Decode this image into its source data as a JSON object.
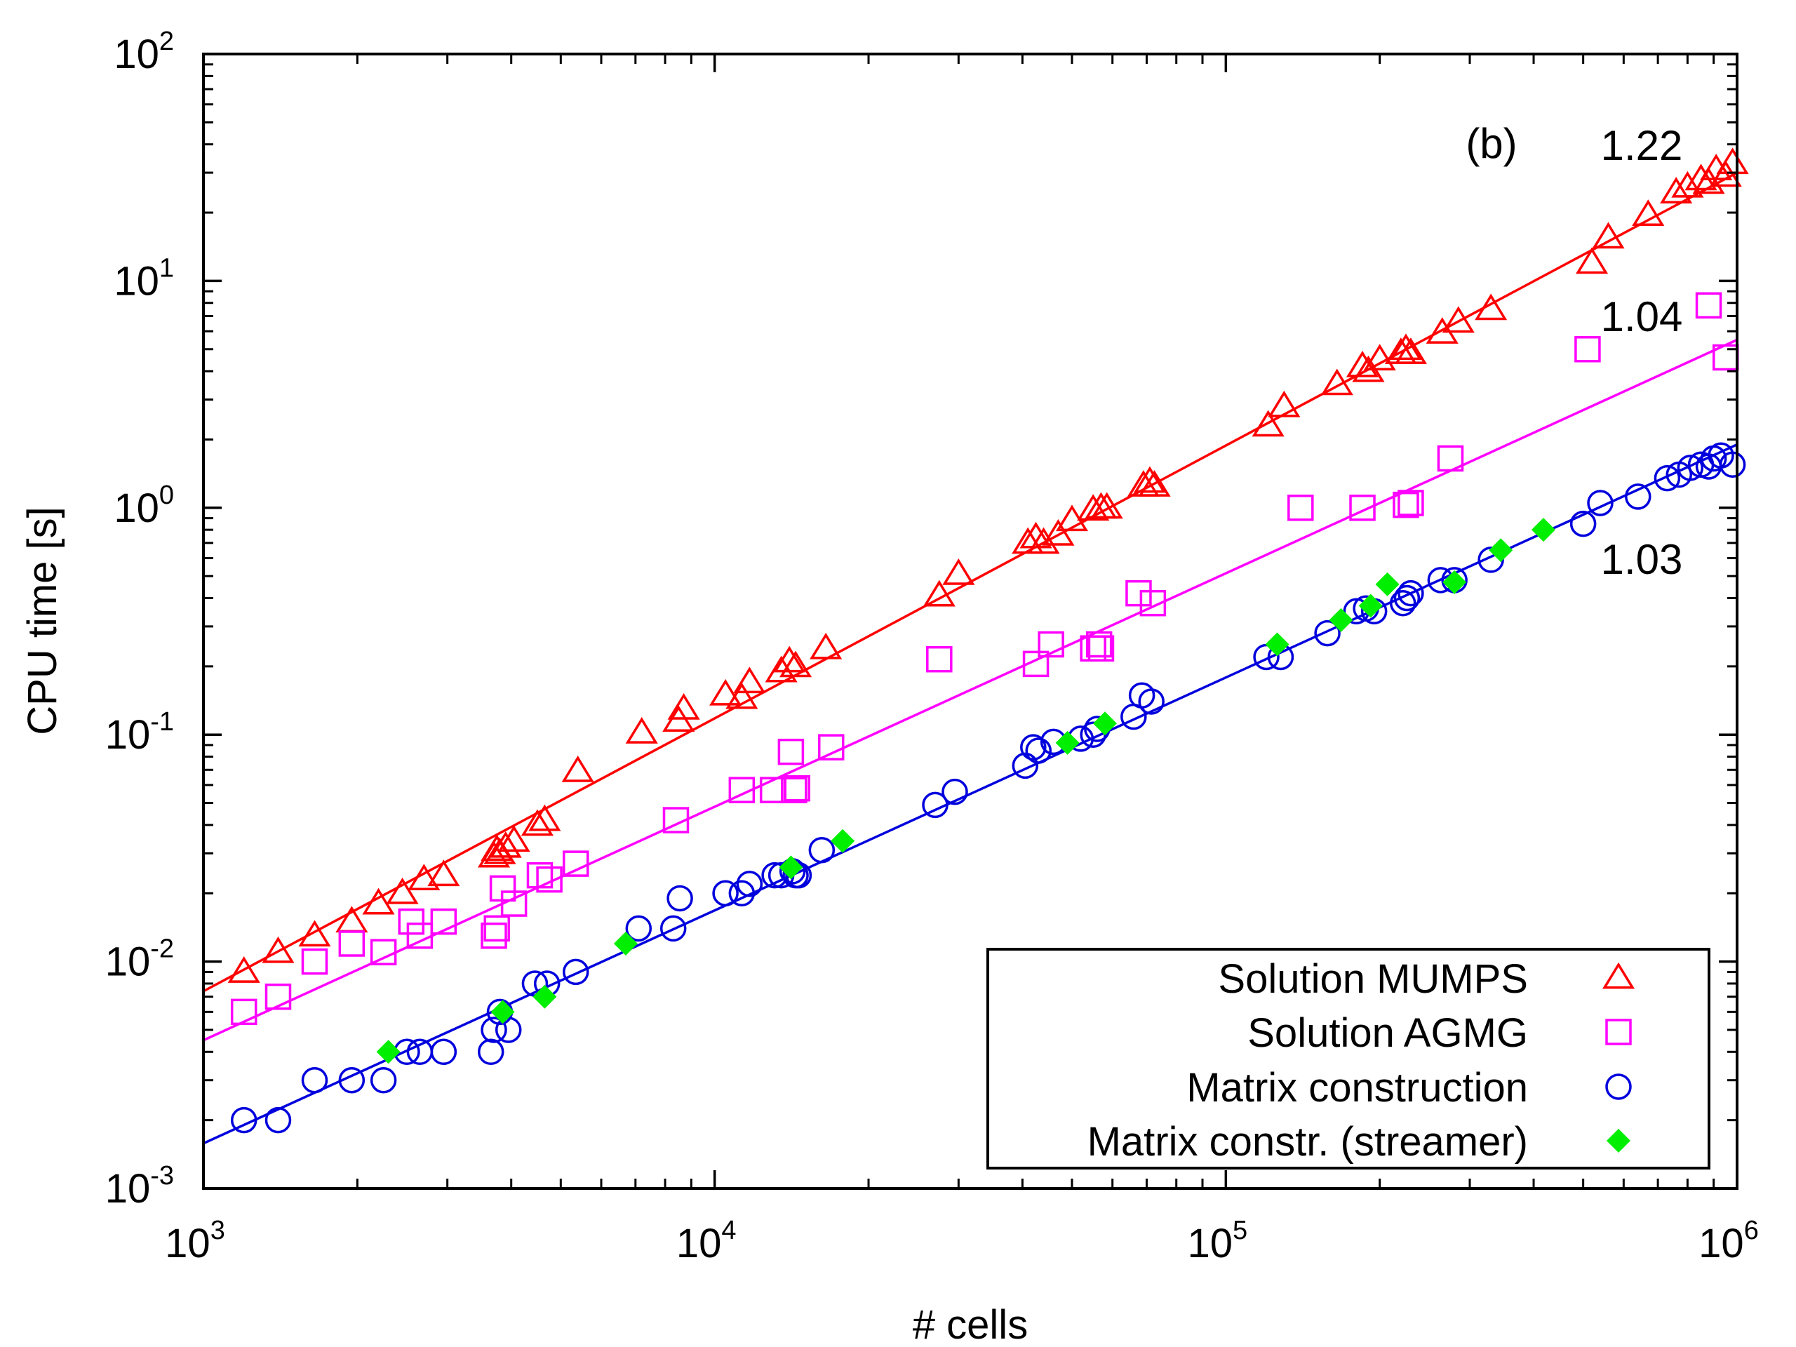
{
  "chart_data": {
    "type": "scatter",
    "panel_label": "(b)",
    "xlabel": "# cells",
    "ylabel": "CPU time [s]",
    "xscale": "log",
    "yscale": "log",
    "xlim": [
      1000,
      1000000
    ],
    "ylim": [
      0.001,
      100
    ],
    "x_ticks": [
      {
        "base": "10",
        "exp": "3",
        "value": 1000
      },
      {
        "base": "10",
        "exp": "4",
        "value": 10000
      },
      {
        "base": "10",
        "exp": "5",
        "value": 100000
      },
      {
        "base": "10",
        "exp": "6",
        "value": 1000000
      }
    ],
    "y_ticks": [
      {
        "base": "10",
        "exp": "-3",
        "value": 0.001
      },
      {
        "base": "10",
        "exp": "-2",
        "value": 0.01
      },
      {
        "base": "10",
        "exp": "-1",
        "value": 0.1
      },
      {
        "base": "10",
        "exp": "0",
        "value": 1
      },
      {
        "base": "10",
        "exp": "1",
        "value": 10
      },
      {
        "base": "10",
        "exp": "2",
        "value": 100
      }
    ],
    "legend_position": "bottom-right",
    "series": [
      {
        "name": "Solution MUMPS",
        "marker": "triangle",
        "color": "#ff0000",
        "slope_label": "1.22",
        "fit": [
          [
            1000,
            0.0074
          ],
          [
            1000000,
            30
          ]
        ],
        "points": [
          [
            1200,
            0.009
          ],
          [
            1400,
            0.011
          ],
          [
            1650,
            0.013
          ],
          [
            1950,
            0.015
          ],
          [
            2200,
            0.018
          ],
          [
            2450,
            0.02
          ],
          [
            2700,
            0.023
          ],
          [
            2950,
            0.024
          ],
          [
            3700,
            0.029
          ],
          [
            3750,
            0.031
          ],
          [
            3800,
            0.03
          ],
          [
            3900,
            0.032
          ],
          [
            4050,
            0.034
          ],
          [
            4500,
            0.04
          ],
          [
            4650,
            0.042
          ],
          [
            5400,
            0.069
          ],
          [
            7200,
            0.102
          ],
          [
            8500,
            0.115
          ],
          [
            8700,
            0.13
          ],
          [
            10500,
            0.15
          ],
          [
            11300,
            0.145
          ],
          [
            11700,
            0.17
          ],
          [
            13500,
            0.19
          ],
          [
            14000,
            0.21
          ],
          [
            14400,
            0.2
          ],
          [
            16500,
            0.24
          ],
          [
            27500,
            0.41
          ],
          [
            30000,
            0.51
          ],
          [
            41000,
            0.7
          ],
          [
            42500,
            0.74
          ],
          [
            44000,
            0.7
          ],
          [
            47000,
            0.76
          ],
          [
            50000,
            0.88
          ],
          [
            55000,
            0.98
          ],
          [
            57000,
            1.0
          ],
          [
            58500,
            1.0
          ],
          [
            69000,
            1.25
          ],
          [
            71000,
            1.3
          ],
          [
            72500,
            1.25
          ],
          [
            121000,
            2.3
          ],
          [
            130000,
            2.8
          ],
          [
            165000,
            3.5
          ],
          [
            185000,
            4.2
          ],
          [
            190000,
            4.0
          ],
          [
            200000,
            4.5
          ],
          [
            220000,
            4.8
          ],
          [
            225000,
            5.0
          ],
          [
            230000,
            4.8
          ],
          [
            265000,
            5.9
          ],
          [
            285000,
            6.6
          ],
          [
            330000,
            7.5
          ],
          [
            520000,
            12.0
          ],
          [
            560000,
            15.5
          ],
          [
            670000,
            19.5
          ],
          [
            760000,
            24.5
          ],
          [
            800000,
            26.0
          ],
          [
            850000,
            28.0
          ],
          [
            880000,
            27.0
          ],
          [
            910000,
            31.0
          ],
          [
            950000,
            29.0
          ],
          [
            980000,
            33.0
          ]
        ]
      },
      {
        "name": "Solution AGMG",
        "marker": "square",
        "color": "#ff00ff",
        "slope_label": "1.04",
        "fit": [
          [
            1000,
            0.0045
          ],
          [
            1000000,
            5.5
          ]
        ],
        "points": [
          [
            1200,
            0.006
          ],
          [
            1400,
            0.007
          ],
          [
            1650,
            0.01
          ],
          [
            1950,
            0.012
          ],
          [
            2250,
            0.011
          ],
          [
            2550,
            0.015
          ],
          [
            2650,
            0.013
          ],
          [
            2950,
            0.015
          ],
          [
            3700,
            0.013
          ],
          [
            3750,
            0.014
          ],
          [
            3850,
            0.021
          ],
          [
            4050,
            0.018
          ],
          [
            4550,
            0.024
          ],
          [
            4750,
            0.023
          ],
          [
            5350,
            0.027
          ],
          [
            8400,
            0.042
          ],
          [
            11300,
            0.057
          ],
          [
            13000,
            0.057
          ],
          [
            14100,
            0.084
          ],
          [
            14300,
            0.057
          ],
          [
            14500,
            0.058
          ],
          [
            16900,
            0.088
          ],
          [
            27500,
            0.215
          ],
          [
            42500,
            0.205
          ],
          [
            45500,
            0.25
          ],
          [
            55000,
            0.24
          ],
          [
            56500,
            0.25
          ],
          [
            57000,
            0.24
          ],
          [
            67500,
            0.42
          ],
          [
            72000,
            0.38
          ],
          [
            140000,
            1.0
          ],
          [
            185000,
            1.0
          ],
          [
            225000,
            1.03
          ],
          [
            230000,
            1.05
          ],
          [
            275000,
            1.65
          ],
          [
            510000,
            5.0
          ],
          [
            880000,
            7.8
          ],
          [
            950000,
            4.6
          ]
        ]
      },
      {
        "name": "Matrix construction",
        "marker": "circle",
        "color": "#0000dd",
        "slope_label": "1.03",
        "fit": [
          [
            1000,
            0.00158
          ],
          [
            1000000,
            1.9
          ]
        ],
        "points": [
          [
            1200,
            0.002
          ],
          [
            1400,
            0.002
          ],
          [
            1650,
            0.003
          ],
          [
            1950,
            0.003
          ],
          [
            2250,
            0.003
          ],
          [
            2500,
            0.004
          ],
          [
            2650,
            0.004
          ],
          [
            2950,
            0.004
          ],
          [
            3650,
            0.004
          ],
          [
            3700,
            0.005
          ],
          [
            3800,
            0.006
          ],
          [
            3950,
            0.005
          ],
          [
            4450,
            0.008
          ],
          [
            4700,
            0.008
          ],
          [
            5350,
            0.009
          ],
          [
            7100,
            0.014
          ],
          [
            8300,
            0.014
          ],
          [
            8550,
            0.019
          ],
          [
            10500,
            0.02
          ],
          [
            11300,
            0.02
          ],
          [
            11700,
            0.022
          ],
          [
            13100,
            0.024
          ],
          [
            13500,
            0.024
          ],
          [
            14200,
            0.025
          ],
          [
            14400,
            0.024
          ],
          [
            14600,
            0.024
          ],
          [
            16200,
            0.031
          ],
          [
            27000,
            0.049
          ],
          [
            29500,
            0.056
          ],
          [
            40500,
            0.073
          ],
          [
            42000,
            0.088
          ],
          [
            43000,
            0.085
          ],
          [
            46000,
            0.093
          ],
          [
            52000,
            0.096
          ],
          [
            55000,
            0.1
          ],
          [
            56000,
            0.106
          ],
          [
            66000,
            0.12
          ],
          [
            68500,
            0.149
          ],
          [
            71500,
            0.14
          ],
          [
            120000,
            0.22
          ],
          [
            128000,
            0.22
          ],
          [
            158000,
            0.28
          ],
          [
            180000,
            0.35
          ],
          [
            188000,
            0.36
          ],
          [
            195000,
            0.35
          ],
          [
            222000,
            0.38
          ],
          [
            226000,
            0.4
          ],
          [
            230000,
            0.42
          ],
          [
            263000,
            0.48
          ],
          [
            280000,
            0.48
          ],
          [
            330000,
            0.59
          ],
          [
            500000,
            0.85
          ],
          [
            540000,
            1.05
          ],
          [
            640000,
            1.12
          ],
          [
            730000,
            1.35
          ],
          [
            770000,
            1.4
          ],
          [
            810000,
            1.5
          ],
          [
            850000,
            1.55
          ],
          [
            880000,
            1.52
          ],
          [
            900000,
            1.65
          ],
          [
            930000,
            1.7
          ],
          [
            980000,
            1.55
          ]
        ]
      },
      {
        "name": "Matrix constr. (streamer)",
        "marker": "diamond",
        "color": "#00ee00",
        "slope_label": "",
        "fit": [],
        "points": [
          [
            2300,
            0.004
          ],
          [
            3850,
            0.006
          ],
          [
            4650,
            0.007
          ],
          [
            6700,
            0.012
          ],
          [
            14100,
            0.026
          ],
          [
            17800,
            0.034
          ],
          [
            49000,
            0.092
          ],
          [
            58000,
            0.112
          ],
          [
            126000,
            0.25
          ],
          [
            168000,
            0.32
          ],
          [
            192000,
            0.37
          ],
          [
            207000,
            0.46
          ],
          [
            280000,
            0.47
          ],
          [
            345000,
            0.65
          ],
          [
            418000,
            0.8
          ]
        ]
      }
    ]
  }
}
